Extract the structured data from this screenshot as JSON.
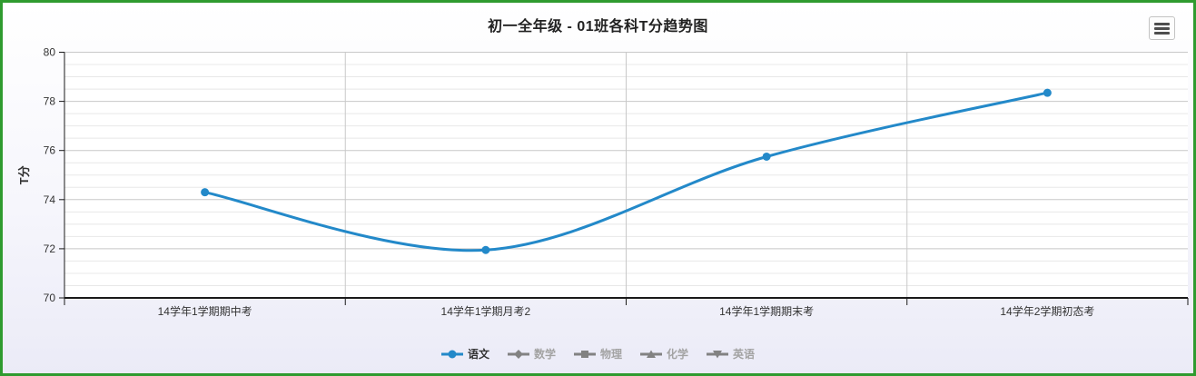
{
  "frame": {
    "border_color": "#2f9b2f",
    "background_bottom": "#ebebf7"
  },
  "header": {
    "title": "初一全年级 - 01班各科T分趋势图"
  },
  "export_menu": {
    "icon": "hamburger-icon"
  },
  "colors": {
    "accent_blue": "#2389c9",
    "inactive_marker_gray": "#828282",
    "inactive_text_gray": "#a3a3a3",
    "axis_text": "#333333"
  },
  "legend": {
    "items": [
      {
        "label": "语文",
        "marker": "circle",
        "active": true
      },
      {
        "label": "数学",
        "marker": "diamond",
        "active": false
      },
      {
        "label": "物理",
        "marker": "square",
        "active": false
      },
      {
        "label": "化学",
        "marker": "triangle-up",
        "active": false
      },
      {
        "label": "英语",
        "marker": "triangle-down",
        "active": false
      }
    ]
  },
  "chart_data": {
    "type": "line",
    "smooth": true,
    "title": "初一全年级 - 01班各科T分趋势图",
    "categories": [
      "14学年1学期期中考",
      "14学年1学期月考2",
      "14学年1学期期末考",
      "14学年2学期初态考"
    ],
    "series": [
      {
        "name": "语文",
        "color": "#2389c9",
        "marker": "circle",
        "visible": true,
        "values": [
          74.3,
          71.95,
          75.75,
          78.35
        ]
      },
      {
        "name": "数学",
        "color": "#828282",
        "marker": "diamond",
        "visible": false,
        "values": []
      },
      {
        "name": "物理",
        "color": "#828282",
        "marker": "square",
        "visible": false,
        "values": []
      },
      {
        "name": "化学",
        "color": "#828282",
        "marker": "triangle-up",
        "visible": false,
        "values": []
      },
      {
        "name": "英语",
        "color": "#828282",
        "marker": "triangle-down",
        "visible": false,
        "values": []
      }
    ],
    "xlabel": "",
    "ylabel": "T分",
    "ylim": [
      70,
      80
    ],
    "ytick_interval": 2,
    "yminor_interval": 0.5,
    "yticks": [
      "70",
      "72",
      "74",
      "76",
      "78",
      "80"
    ],
    "grid": true,
    "legend_position": "bottom"
  }
}
